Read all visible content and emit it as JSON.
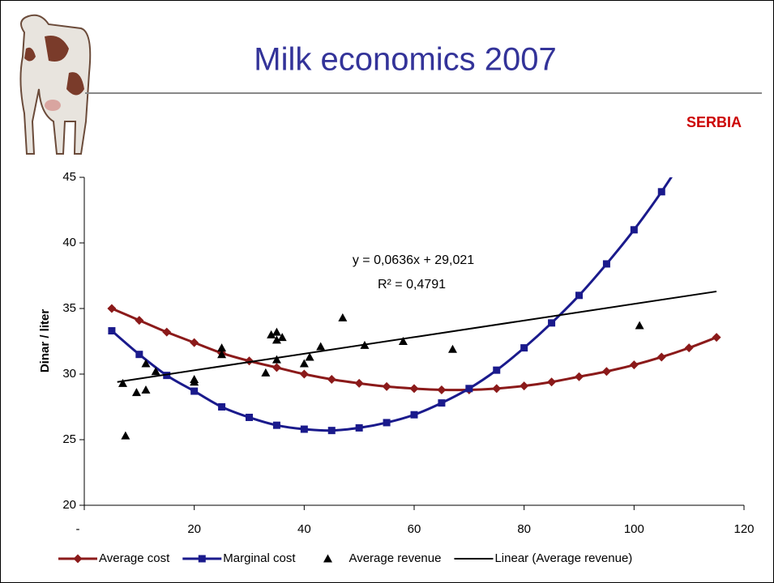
{
  "slide": {
    "title": "Milk economics 2007",
    "badge": "SERBIA"
  },
  "chart_data": {
    "type": "line",
    "ylabel": "Dinar / liter",
    "annotations": [
      "y = 0,0636x + 29,021",
      "R² = 0,4791"
    ],
    "xlim": [
      0,
      120
    ],
    "ylim": [
      20,
      45
    ],
    "xticks": [
      {
        "value": 0,
        "label": "-"
      },
      20,
      40,
      60,
      80,
      100,
      120
    ],
    "yticks": [
      20,
      25,
      30,
      35,
      40,
      45
    ],
    "grid": false,
    "legend": "bottom",
    "series": [
      {
        "name": "Average cost",
        "color": "#8b1a1a",
        "marker": "diamond",
        "line": true,
        "x": [
          5,
          10,
          15,
          20,
          25,
          30,
          35,
          40,
          45,
          50,
          55,
          60,
          65,
          70,
          75,
          80,
          85,
          90,
          95,
          100,
          105,
          110,
          115
        ],
        "values": [
          35.0,
          34.1,
          33.2,
          32.4,
          31.6,
          31.0,
          30.5,
          30.0,
          29.6,
          29.3,
          29.05,
          28.9,
          28.8,
          28.8,
          28.9,
          29.1,
          29.4,
          29.8,
          30.2,
          30.7,
          31.3,
          32.0,
          32.8
        ]
      },
      {
        "name": "Marginal cost",
        "color": "#1a1a8c",
        "marker": "square",
        "line": true,
        "x": [
          5,
          10,
          15,
          20,
          25,
          30,
          35,
          40,
          45,
          50,
          55,
          60,
          65,
          70,
          75,
          80,
          85,
          90,
          95,
          100,
          105,
          110
        ],
        "values": [
          33.3,
          31.5,
          29.9,
          28.7,
          27.5,
          26.7,
          26.1,
          25.8,
          25.7,
          25.9,
          26.3,
          26.9,
          27.8,
          28.9,
          30.3,
          32.0,
          33.9,
          36.0,
          38.4,
          41.0,
          43.9,
          47.1
        ]
      },
      {
        "name": "Average revenue",
        "color": "#000000",
        "marker": "triangle",
        "line": false,
        "x": [
          7,
          7.5,
          9.5,
          11.2,
          11.2,
          13,
          20,
          20,
          25,
          25,
          33,
          34,
          35,
          35,
          35,
          36,
          40,
          41,
          43,
          47,
          51,
          58,
          67,
          101
        ],
        "values": [
          29.3,
          25.3,
          28.6,
          28.8,
          30.8,
          30.2,
          29.6,
          29.4,
          32.0,
          31.5,
          30.1,
          33.0,
          33.2,
          32.6,
          31.1,
          32.8,
          30.8,
          31.3,
          32.1,
          34.3,
          32.2,
          32.5,
          31.9,
          33.7
        ]
      },
      {
        "name": "Linear (Average revenue)",
        "color": "#000000",
        "marker": "none",
        "line": true,
        "x": [
          6,
          115
        ],
        "values": [
          29.4,
          36.3
        ]
      }
    ]
  }
}
